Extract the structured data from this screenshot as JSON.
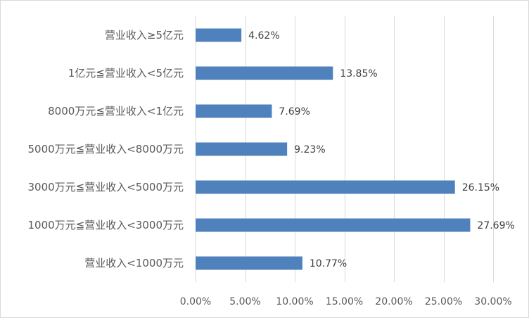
{
  "chart_data": {
    "type": "bar",
    "orientation": "horizontal",
    "categories": [
      "营业收入≥5亿元",
      "1亿元≦营业收入<5亿元",
      "8000万元≦营业收入<1亿元",
      "5000万元≦营业收入<8000万元",
      "3000万元≦营业收入<5000万元",
      "1000万元≦营业收入<3000万元",
      "营业收入<1000万元"
    ],
    "values": [
      4.62,
      13.85,
      7.69,
      9.23,
      26.15,
      27.69,
      10.77
    ],
    "data_labels": [
      "4.62%",
      "13.85%",
      "7.69%",
      "9.23%",
      "26.15%",
      "27.69%",
      "10.77%"
    ],
    "xlim": [
      0,
      30
    ],
    "x_ticks": [
      0,
      5,
      10,
      15,
      20,
      25,
      30
    ],
    "x_tick_labels": [
      "0.00%",
      "5.00%",
      "10.00%",
      "15.00%",
      "20.00%",
      "25.00%",
      "30.00%"
    ],
    "grid": true,
    "bar_color": "#4f81bd"
  }
}
